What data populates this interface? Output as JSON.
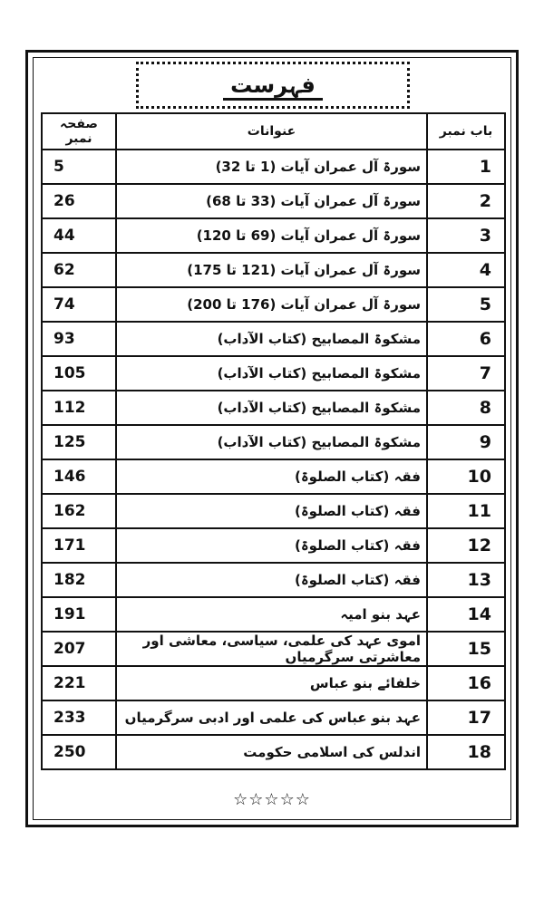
{
  "title": "فہرست",
  "table": {
    "headers": [
      "باب نمبر",
      "عنوانات",
      "صفحہ نمبر"
    ],
    "rows": [
      [
        1,
        "سورۃ آل عمران آیات (1 تا 32)",
        5
      ],
      [
        2,
        "سورۃ آل عمران آیات (33 تا 68)",
        26
      ],
      [
        3,
        "سورۃ آل عمران آیات (69 تا 120)",
        44
      ],
      [
        4,
        "سورۃ آل عمران آیات (121 تا 175)",
        62
      ],
      [
        5,
        "سورۃ آل عمران آیات (176 تا 200)",
        74
      ],
      [
        6,
        "مشکوۃ المصابیح (کتاب الآداب)",
        93
      ],
      [
        7,
        "مشکوۃ المصابیح (کتاب الآداب)",
        105
      ],
      [
        8,
        "مشکوۃ المصابیح (کتاب الآداب)",
        112
      ],
      [
        9,
        "مشکوۃ المصابیح (کتاب الآداب)",
        125
      ],
      [
        10,
        "فقہ (کتاب الصلوۃ)",
        146
      ],
      [
        11,
        "فقہ (کتاب الصلوۃ)",
        162
      ],
      [
        12,
        "فقہ (کتاب الصلوۃ)",
        171
      ],
      [
        13,
        "فقہ (کتاب الصلوۃ)",
        182
      ],
      [
        14,
        "عہد بنو امیہ",
        191
      ],
      [
        15,
        "اموی عہد کی علمی، سیاسی، معاشی اور معاشرتی سرگرمیاں",
        207
      ],
      [
        16,
        "خلفائے بنو عباس",
        221
      ],
      [
        17,
        "عہد بنو عباس کی علمی اور ادبی سرگرمیاں",
        233
      ],
      [
        18,
        "اندلس کی اسلامی حکومت",
        250
      ]
    ]
  },
  "footer": "☆☆☆☆☆"
}
